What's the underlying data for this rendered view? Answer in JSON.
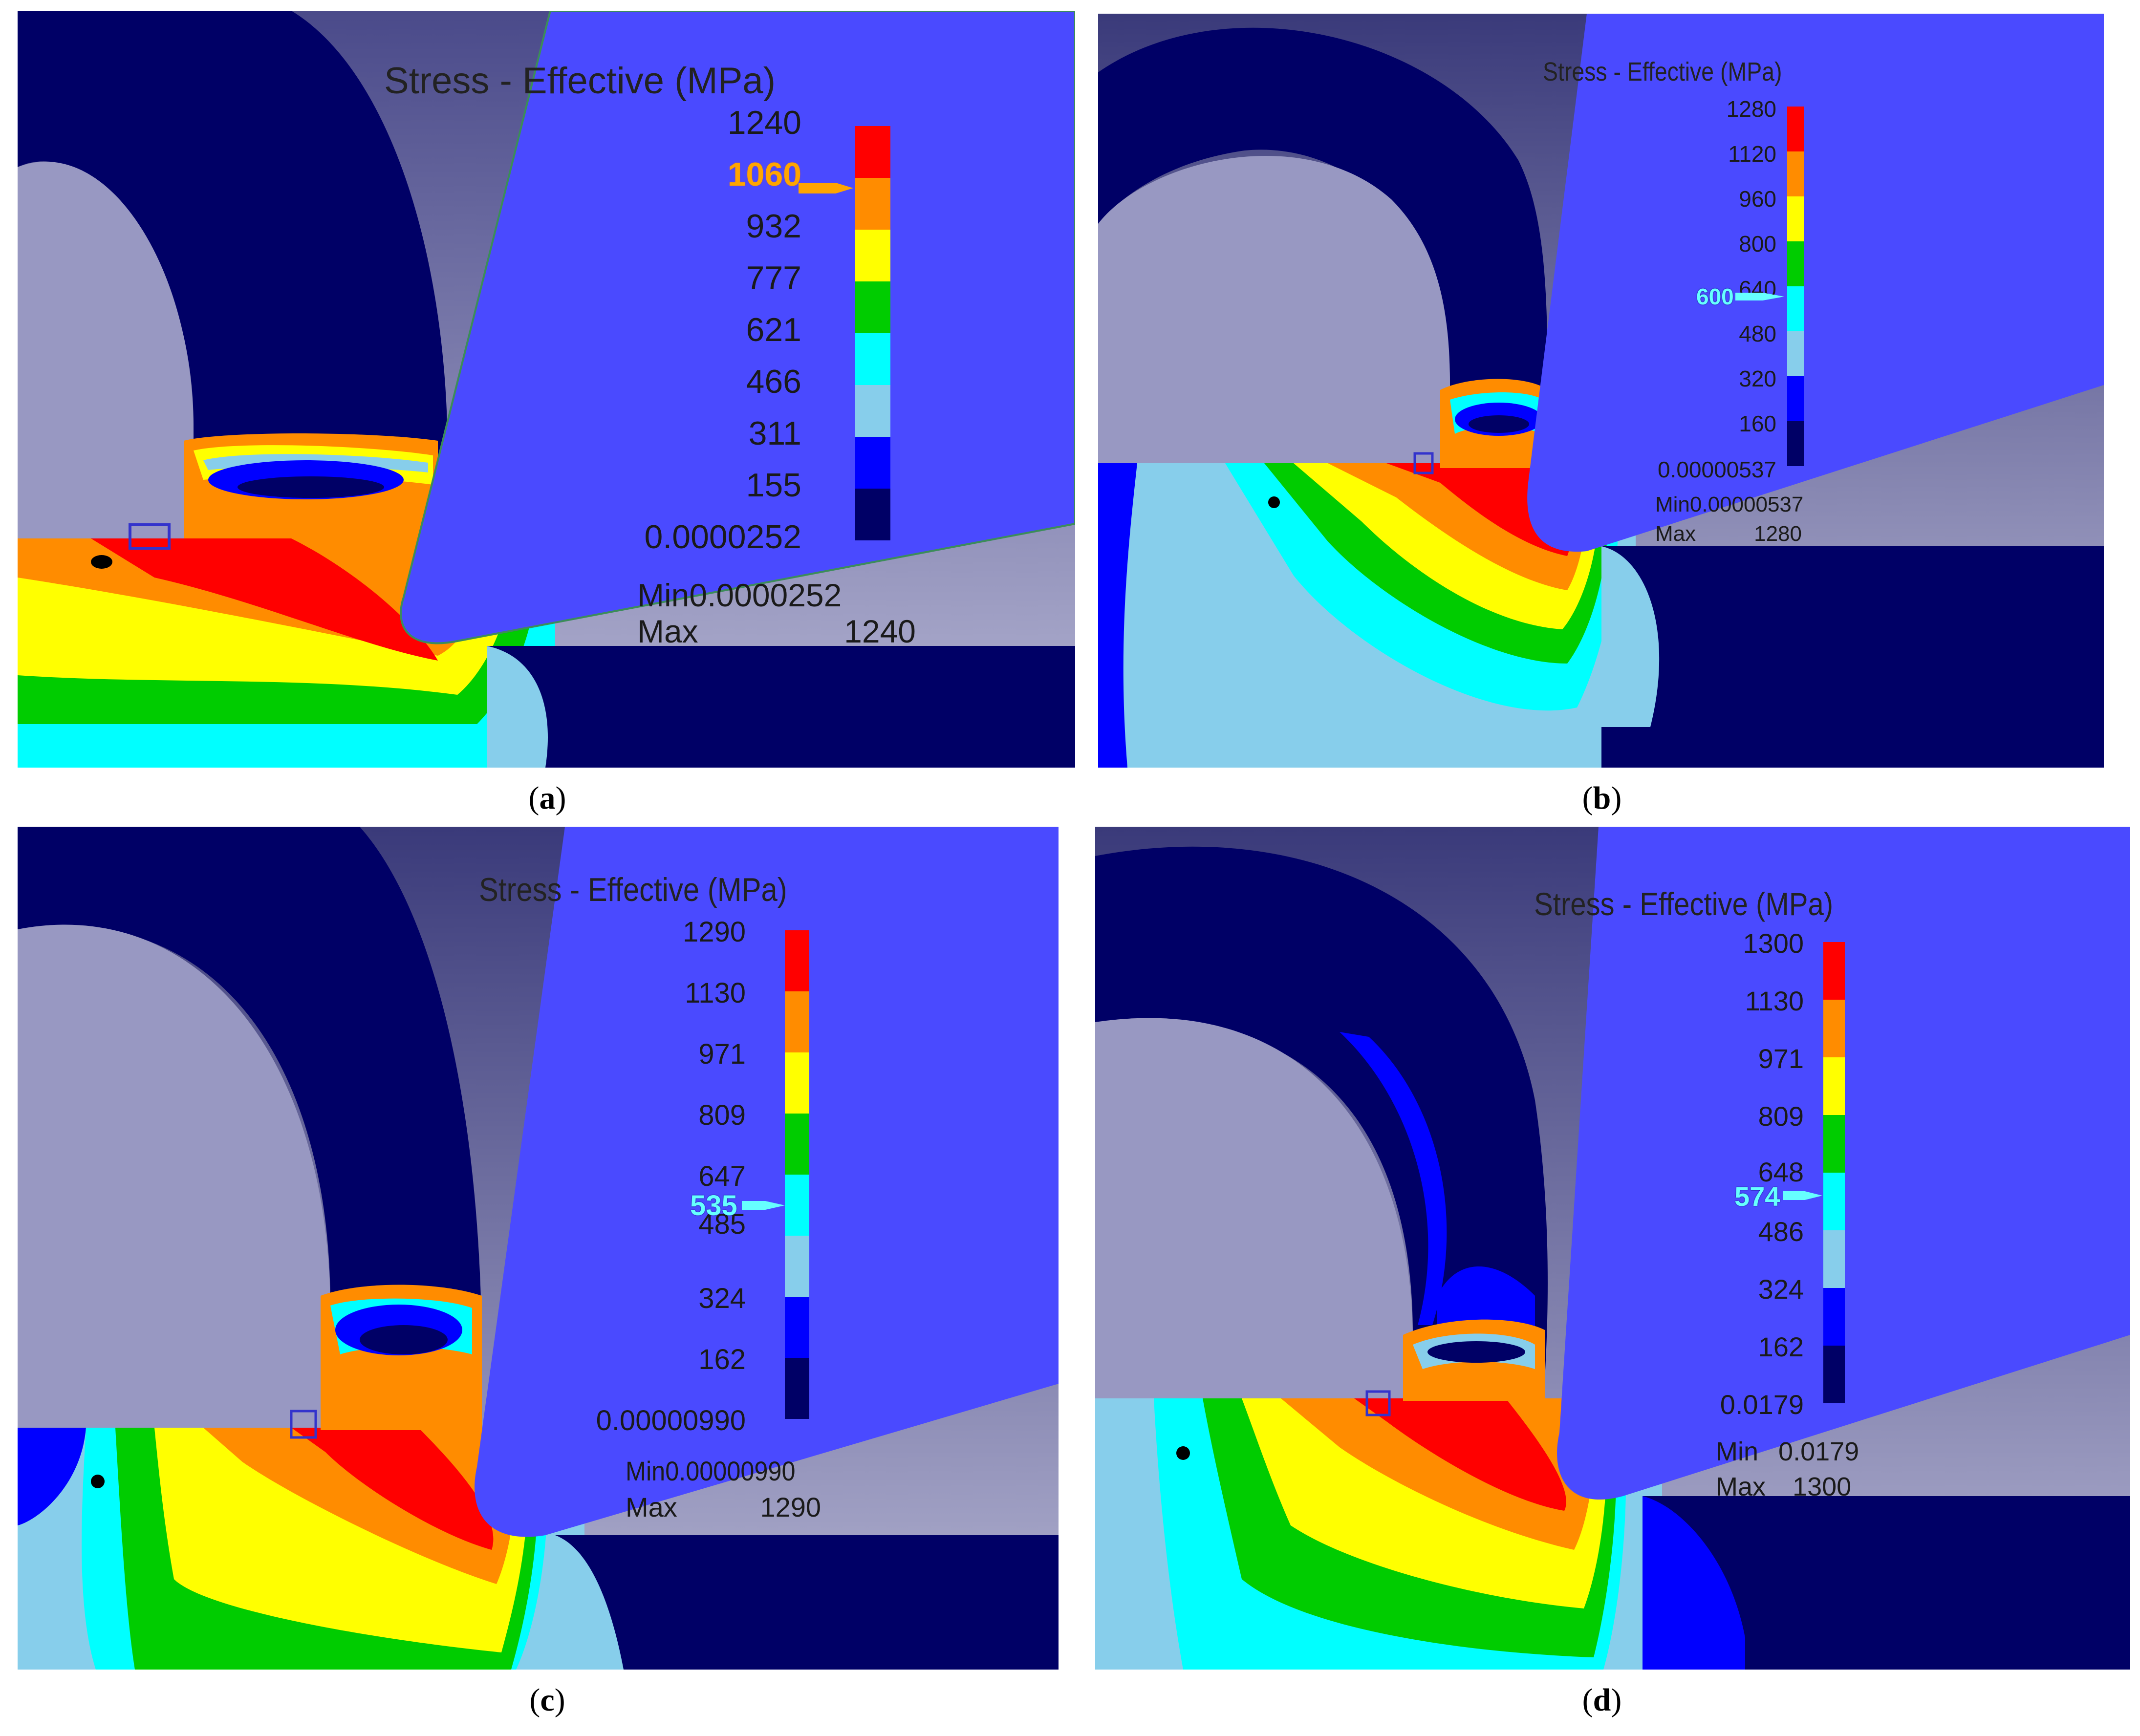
{
  "palette": {
    "red": "#ff0000",
    "orange": "#ff8c00",
    "yellow": "#ffff00",
    "green": "#00cc00",
    "cyan": "#00ffff",
    "light_blue": "#87ceeb",
    "blue": "#0000ff",
    "navy": "#000066",
    "tool_blue": "#4a4aff",
    "background": "#8a8ab4"
  },
  "panels": [
    {
      "caption_open": "(",
      "caption_letter": "a",
      "caption_close": ")",
      "legend": {
        "title": "Stress - Effective (MPa)",
        "ticks": [
          "1240",
          "1060",
          "932",
          "777",
          "621",
          "466",
          "311",
          "155",
          "0.0000252"
        ],
        "marker": "1060",
        "min_label": "Min",
        "min_value": "0.0000252",
        "max_label": "Max",
        "max_value": "1240"
      }
    },
    {
      "caption_open": "(",
      "caption_letter": "b",
      "caption_close": ")",
      "legend": {
        "title": "Stress - Effective (MPa)",
        "ticks": [
          "1280",
          "1120",
          "960",
          "800",
          "640",
          "480",
          "320",
          "160",
          "0.00000537"
        ],
        "marker": "600",
        "min_label": "Min",
        "min_value": "0.00000537",
        "max_label": "Max",
        "max_value": "1280"
      }
    },
    {
      "caption_open": "(",
      "caption_letter": "c",
      "caption_close": ")",
      "legend": {
        "title": "Stress - Effective (MPa)",
        "ticks": [
          "1290",
          "1130",
          "971",
          "809",
          "647",
          "485",
          "324",
          "162",
          "0.00000990"
        ],
        "marker": "535",
        "min_label": "Min",
        "min_value": "0.00000990",
        "max_label": "Max",
        "max_value": "1290"
      }
    },
    {
      "caption_open": "(",
      "caption_letter": "d",
      "caption_close": ")",
      "legend": {
        "title": "Stress - Effective (MPa)",
        "ticks": [
          "1300",
          "1130",
          "971",
          "809",
          "648",
          "486",
          "324",
          "162",
          "0.0179"
        ],
        "marker": "574",
        "min_label": "Min",
        "min_value": "0.0179",
        "max_label": "Max",
        "max_value": "1300"
      }
    }
  ]
}
